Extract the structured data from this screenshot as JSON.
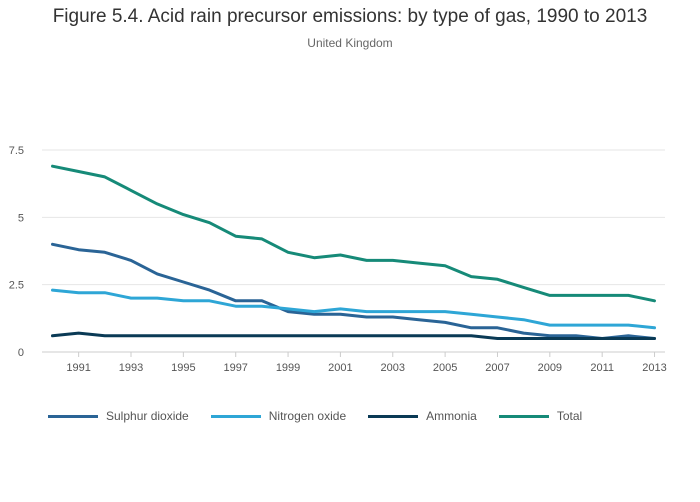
{
  "header": {
    "title": "Figure 5.4. Acid rain precursor emissions: by type of gas, 1990 to 2013",
    "subtitle": "United Kingdom"
  },
  "chart_data": {
    "type": "line",
    "title": "Figure 5.4. Acid rain precursor emissions: by type of gas, 1990 to 2013",
    "subtitle": "United Kingdom",
    "xlabel": "",
    "ylabel": "",
    "x": [
      1990,
      1991,
      1992,
      1993,
      1994,
      1995,
      1996,
      1997,
      1998,
      1999,
      2000,
      2001,
      2002,
      2003,
      2004,
      2005,
      2006,
      2007,
      2008,
      2009,
      2010,
      2011,
      2012,
      2013
    ],
    "x_tick_labels": [
      "1991",
      "1993",
      "1995",
      "1997",
      "1999",
      "2001",
      "2003",
      "2005",
      "2007",
      "2009",
      "2011",
      "2013"
    ],
    "y_tick_labels": [
      "0",
      "2.5",
      "5",
      "7.5"
    ],
    "xlim": [
      1989.6,
      2013.4
    ],
    "ylim": [
      0,
      7.5
    ],
    "grid": true,
    "legend_position": "bottom-left",
    "series": [
      {
        "name": "Sulphur dioxide",
        "color": "#2a6496",
        "values": [
          4.0,
          3.8,
          3.7,
          3.4,
          2.9,
          2.6,
          2.3,
          1.9,
          1.9,
          1.5,
          1.4,
          1.4,
          1.3,
          1.3,
          1.2,
          1.1,
          0.9,
          0.9,
          0.7,
          0.6,
          0.6,
          0.5,
          0.6,
          0.5
        ]
      },
      {
        "name": "Nitrogen oxide",
        "color": "#2ea6d6",
        "values": [
          2.3,
          2.2,
          2.2,
          2.0,
          2.0,
          1.9,
          1.9,
          1.7,
          1.7,
          1.6,
          1.5,
          1.6,
          1.5,
          1.5,
          1.5,
          1.5,
          1.4,
          1.3,
          1.2,
          1.0,
          1.0,
          1.0,
          1.0,
          0.9
        ]
      },
      {
        "name": "Ammonia",
        "color": "#0a3a55",
        "values": [
          0.6,
          0.7,
          0.6,
          0.6,
          0.6,
          0.6,
          0.6,
          0.6,
          0.6,
          0.6,
          0.6,
          0.6,
          0.6,
          0.6,
          0.6,
          0.6,
          0.6,
          0.5,
          0.5,
          0.5,
          0.5,
          0.5,
          0.5,
          0.5
        ]
      },
      {
        "name": "Total",
        "color": "#168a78",
        "values": [
          6.9,
          6.7,
          6.5,
          6.0,
          5.5,
          5.1,
          4.8,
          4.3,
          4.2,
          3.7,
          3.5,
          3.6,
          3.4,
          3.4,
          3.3,
          3.2,
          2.8,
          2.7,
          2.4,
          2.1,
          2.1,
          2.1,
          2.1,
          1.9
        ]
      }
    ]
  }
}
